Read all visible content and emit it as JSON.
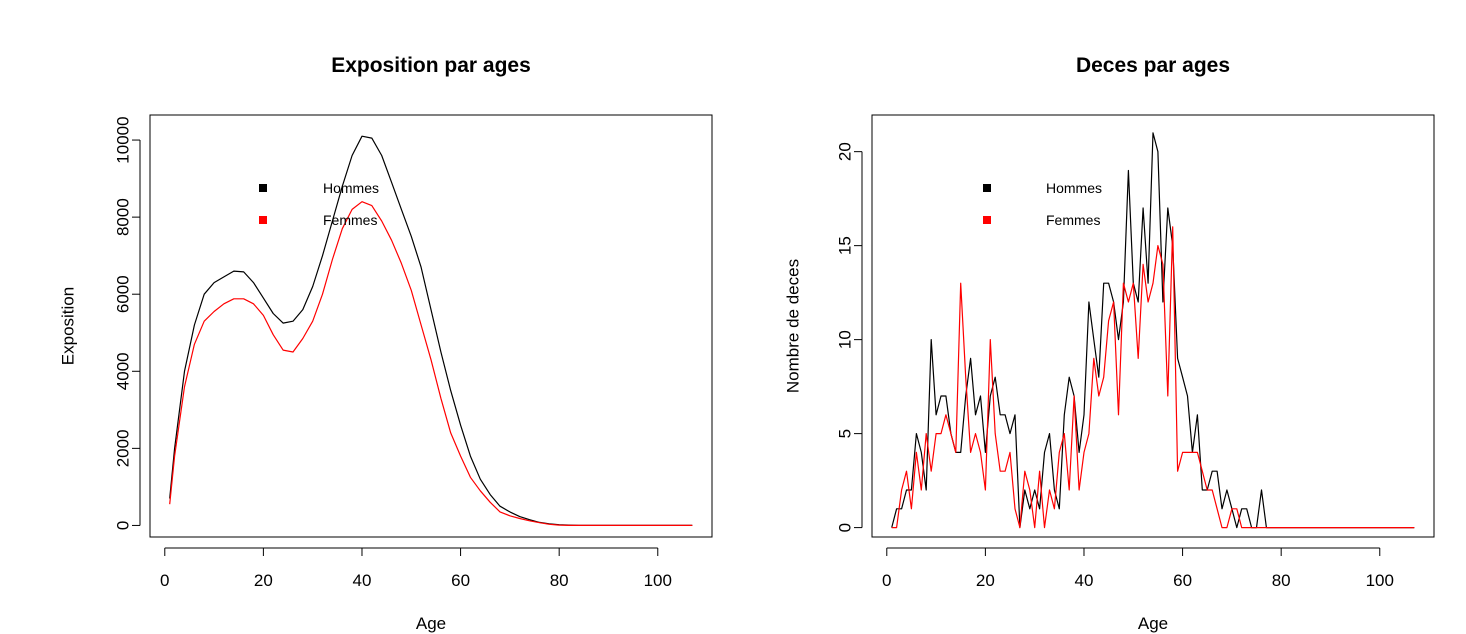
{
  "chart_data": [
    {
      "type": "line",
      "title": "Exposition par ages",
      "xlabel": "Age",
      "ylabel": "Exposition",
      "xlim": [
        -3,
        111
      ],
      "ylim": [
        -300,
        10650
      ],
      "xticks": [
        0,
        20,
        40,
        60,
        80,
        100
      ],
      "yticks": [
        0,
        2000,
        4000,
        6000,
        8000,
        10000
      ],
      "xtick_labels": [
        "0",
        "20",
        "40",
        "60",
        "80",
        "100"
      ],
      "ytick_labels": [
        "0",
        "2000",
        "4000",
        "6000",
        "8000",
        "10000"
      ],
      "legend": {
        "placement": "top-left",
        "entries": [
          "Hommes",
          "Femmes"
        ]
      },
      "series": [
        {
          "name": "Hommes",
          "color": "#000000",
          "x": [
            1,
            2,
            4,
            6,
            8,
            10,
            12,
            14,
            16,
            18,
            20,
            22,
            24,
            26,
            28,
            30,
            32,
            34,
            36,
            38,
            40,
            42,
            44,
            46,
            48,
            50,
            52,
            54,
            56,
            58,
            60,
            62,
            64,
            66,
            68,
            70,
            72,
            74,
            76,
            78,
            80,
            82,
            84,
            90,
            100,
            107
          ],
          "y": [
            700,
            2000,
            4000,
            5200,
            6000,
            6300,
            6450,
            6600,
            6580,
            6300,
            5900,
            5500,
            5250,
            5300,
            5600,
            6200,
            7000,
            7900,
            8800,
            9600,
            10100,
            10050,
            9600,
            8900,
            8200,
            7500,
            6700,
            5600,
            4500,
            3500,
            2600,
            1800,
            1200,
            800,
            500,
            350,
            230,
            150,
            80,
            40,
            20,
            8,
            0,
            0,
            0,
            0
          ]
        },
        {
          "name": "Femmes",
          "color": "#ff0000",
          "x": [
            1,
            2,
            4,
            6,
            8,
            10,
            12,
            14,
            16,
            18,
            20,
            22,
            24,
            26,
            28,
            30,
            32,
            34,
            36,
            38,
            40,
            42,
            44,
            46,
            48,
            50,
            52,
            54,
            56,
            58,
            60,
            62,
            64,
            66,
            68,
            70,
            72,
            74,
            76,
            78,
            80,
            82,
            84,
            90,
            100,
            107
          ],
          "y": [
            550,
            1800,
            3600,
            4700,
            5300,
            5550,
            5750,
            5880,
            5880,
            5750,
            5450,
            4950,
            4550,
            4500,
            4850,
            5300,
            6000,
            6900,
            7700,
            8200,
            8400,
            8300,
            7900,
            7400,
            6800,
            6100,
            5200,
            4300,
            3300,
            2400,
            1800,
            1250,
            900,
            600,
            350,
            250,
            180,
            120,
            70,
            30,
            10,
            0,
            0,
            0,
            0,
            0
          ]
        }
      ]
    },
    {
      "type": "line",
      "title": "Deces par ages",
      "xlabel": "Age",
      "ylabel": "Nombre de deces",
      "xlim": [
        -3,
        111
      ],
      "ylim": [
        -0.5,
        21.95
      ],
      "xticks": [
        0,
        20,
        40,
        60,
        80,
        100
      ],
      "yticks": [
        0,
        5,
        10,
        15,
        20
      ],
      "xtick_labels": [
        "0",
        "20",
        "40",
        "60",
        "80",
        "100"
      ],
      "ytick_labels": [
        "0",
        "5",
        "10",
        "15",
        "20"
      ],
      "legend": {
        "placement": "top-left",
        "entries": [
          "Hommes",
          "Femmes"
        ]
      },
      "series": [
        {
          "name": "Hommes",
          "color": "#000000",
          "x": [
            1,
            2,
            3,
            4,
            5,
            6,
            7,
            8,
            9,
            10,
            11,
            12,
            13,
            14,
            15,
            16,
            17,
            18,
            19,
            20,
            21,
            22,
            23,
            24,
            25,
            26,
            27,
            28,
            29,
            30,
            31,
            32,
            33,
            34,
            35,
            36,
            37,
            38,
            39,
            40,
            41,
            42,
            43,
            44,
            45,
            46,
            47,
            48,
            49,
            50,
            51,
            52,
            53,
            54,
            55,
            56,
            57,
            58,
            59,
            60,
            61,
            62,
            63,
            64,
            65,
            66,
            67,
            68,
            69,
            70,
            71,
            72,
            73,
            74,
            75,
            76,
            77,
            78,
            80,
            90,
            100,
            107
          ],
          "y": [
            0,
            1,
            1,
            2,
            2,
            5,
            4,
            2,
            10,
            6,
            7,
            7,
            5,
            4,
            4,
            7,
            9,
            6,
            7,
            4,
            7,
            8,
            6,
            6,
            5,
            6,
            0,
            2,
            1,
            2,
            1,
            4,
            5,
            2,
            1,
            6,
            8,
            7,
            4,
            6,
            12,
            10,
            8,
            13,
            13,
            12,
            10,
            12,
            19,
            13,
            12,
            17,
            13,
            21,
            20,
            12,
            17,
            15,
            9,
            8,
            7,
            4,
            6,
            2,
            2,
            3,
            3,
            1,
            2,
            1,
            0,
            1,
            1,
            0,
            0,
            2,
            0,
            0,
            0,
            0,
            0,
            0
          ]
        },
        {
          "name": "Femmes",
          "color": "#ff0000",
          "x": [
            1,
            2,
            3,
            4,
            5,
            6,
            7,
            8,
            9,
            10,
            11,
            12,
            13,
            14,
            15,
            16,
            17,
            18,
            19,
            20,
            21,
            22,
            23,
            24,
            25,
            26,
            27,
            28,
            29,
            30,
            31,
            32,
            33,
            34,
            35,
            36,
            37,
            38,
            39,
            40,
            41,
            42,
            43,
            44,
            45,
            46,
            47,
            48,
            49,
            50,
            51,
            52,
            53,
            54,
            55,
            56,
            57,
            58,
            59,
            60,
            61,
            62,
            63,
            64,
            65,
            66,
            67,
            68,
            69,
            70,
            71,
            72,
            73,
            74,
            75,
            76,
            77,
            78,
            80,
            90,
            100,
            107
          ],
          "y": [
            0,
            0,
            2,
            3,
            1,
            4,
            2,
            5,
            3,
            5,
            5,
            6,
            5,
            4,
            13,
            8,
            4,
            5,
            4,
            2,
            10,
            5,
            3,
            3,
            4,
            1,
            0,
            3,
            2,
            0,
            3,
            0,
            2,
            1,
            4,
            5,
            2,
            7,
            2,
            4,
            5,
            9,
            7,
            8,
            11,
            12,
            6,
            13,
            12,
            13,
            9,
            14,
            12,
            13,
            15,
            14,
            7,
            16,
            3,
            4,
            4,
            4,
            4,
            3,
            2,
            2,
            1,
            0,
            0,
            1,
            1,
            0,
            0,
            0,
            0,
            0,
            0,
            0,
            0,
            0,
            0,
            0
          ]
        }
      ]
    }
  ]
}
